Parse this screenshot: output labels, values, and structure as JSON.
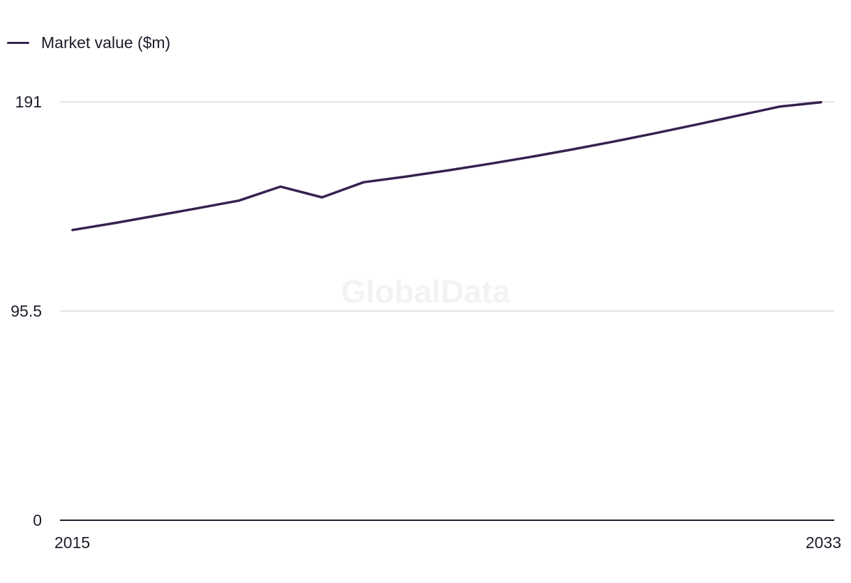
{
  "legend": {
    "label": "Market value ($m)"
  },
  "watermark": "GlobalData",
  "chart_data": {
    "type": "line",
    "x": [
      2015,
      2016,
      2017,
      2018,
      2019,
      2020,
      2021,
      2022,
      2023,
      2024,
      2025,
      2026,
      2027,
      2028,
      2029,
      2030,
      2031,
      2032,
      2033
    ],
    "series": [
      {
        "name": "Market value ($m)",
        "color": "#35214f",
        "values": [
          132.5,
          135.6,
          139.0,
          142.4,
          145.9,
          152.3,
          147.4,
          154.3,
          156.8,
          159.6,
          162.6,
          165.8,
          169.2,
          172.8,
          176.6,
          180.6,
          184.7,
          188.8,
          190.8
        ]
      }
    ],
    "xlim": [
      2015,
      2033
    ],
    "ylim": [
      0,
      191
    ],
    "y_ticks": [
      {
        "value": 191,
        "label": "191"
      },
      {
        "value": 95.5,
        "label": "95.5"
      },
      {
        "value": 0,
        "label": "0"
      }
    ],
    "x_ticks": [
      {
        "value": 2015,
        "label": "2015"
      },
      {
        "value": 2033,
        "label": "2033"
      }
    ],
    "grid": true,
    "legend_position": "top-left",
    "colors": {
      "line": "#35214f",
      "grid": "#d9d9de",
      "axis": "#1c1b2a",
      "text": "#1c1b2a"
    }
  }
}
